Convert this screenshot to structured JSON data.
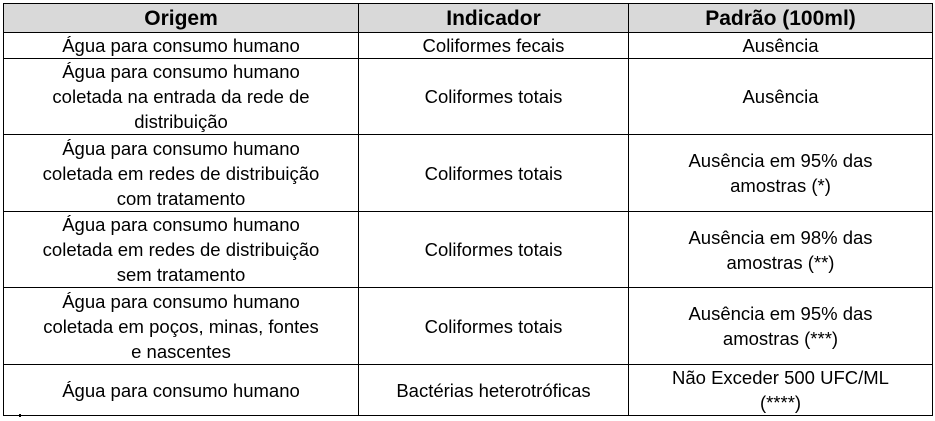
{
  "table": {
    "headers": [
      "Origem",
      "Indicador",
      "Padrão (100ml)"
    ],
    "rows": [
      {
        "origem": "Água para consumo humano",
        "indicador": "Coliformes fecais",
        "padrao": "Ausência"
      },
      {
        "origem": "Água para consumo humano\ncoletada na entrada da rede de\ndistribuição",
        "indicador": "Coliformes totais",
        "padrao": "Ausência"
      },
      {
        "origem": "Água para consumo humano\ncoletada em redes de distribuição\ncom tratamento",
        "indicador": "Coliformes totais",
        "padrao": "Ausência  em 95% das\namostras (*)"
      },
      {
        "origem": "Água para consumo humano\ncoletada em redes de distribuição\nsem tratamento",
        "indicador": "Coliformes totais",
        "padrao": "Ausência  em 98% das\namostras (**)"
      },
      {
        "origem": "Água para consumo humano\ncoletada em poços, minas, fontes\ne nascentes",
        "indicador": "Coliformes totais",
        "padrao": "Ausência  em 95% das\namostras (***)"
      },
      {
        "origem": "Água para consumo humano",
        "indicador": "Bactérias heterotróficas",
        "padrao": "Não Exceder 500 UFC/ML\n(****)"
      }
    ]
  }
}
